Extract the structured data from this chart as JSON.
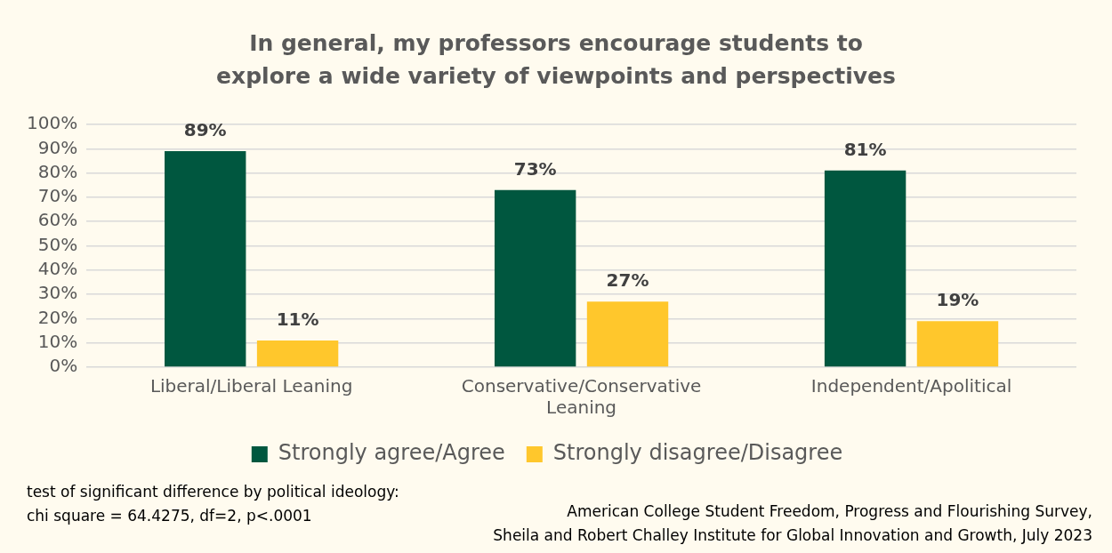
{
  "chart_data": {
    "type": "bar",
    "title": "In general, my professors encourage students to explore a wide variety of viewpoints and perspectives",
    "categories": [
      "Liberal/Liberal Leaning",
      "Conservative/Conservative Leaning",
      "Independent/Apolitical"
    ],
    "series": [
      {
        "name": "Strongly agree/Agree",
        "color": "#00573f",
        "values": [
          89,
          73,
          81
        ],
        "value_labels": [
          "89%",
          "73%",
          "81%"
        ]
      },
      {
        "name": "Strongly disagree/Disagree",
        "color": "#ffc72c",
        "values": [
          11,
          27,
          19
        ],
        "value_labels": [
          "11%",
          "27%",
          "19%"
        ]
      }
    ],
    "ylim": [
      0,
      100
    ],
    "yticks": [
      {
        "value": 0,
        "label": "0%"
      },
      {
        "value": 10,
        "label": "10%"
      },
      {
        "value": 20,
        "label": "20%"
      },
      {
        "value": 30,
        "label": "30%"
      },
      {
        "value": 40,
        "label": "40%"
      },
      {
        "value": 50,
        "label": "50%"
      },
      {
        "value": 60,
        "label": "60%"
      },
      {
        "value": 70,
        "label": "70%"
      },
      {
        "value": 80,
        "label": "80%"
      },
      {
        "value": 90,
        "label": "90%"
      },
      {
        "value": 100,
        "label": "100%"
      }
    ],
    "grid": "y",
    "legend": "bottom",
    "annotations": [
      "test of significant difference by political ideology:\nchi square = 64.4275, df=2, p<.0001",
      "American College Student Freedom, Progress and Flourishing Survey,\nSheila and Robert Challey Institute for Global Innovation and Growth, July 2023"
    ]
  }
}
